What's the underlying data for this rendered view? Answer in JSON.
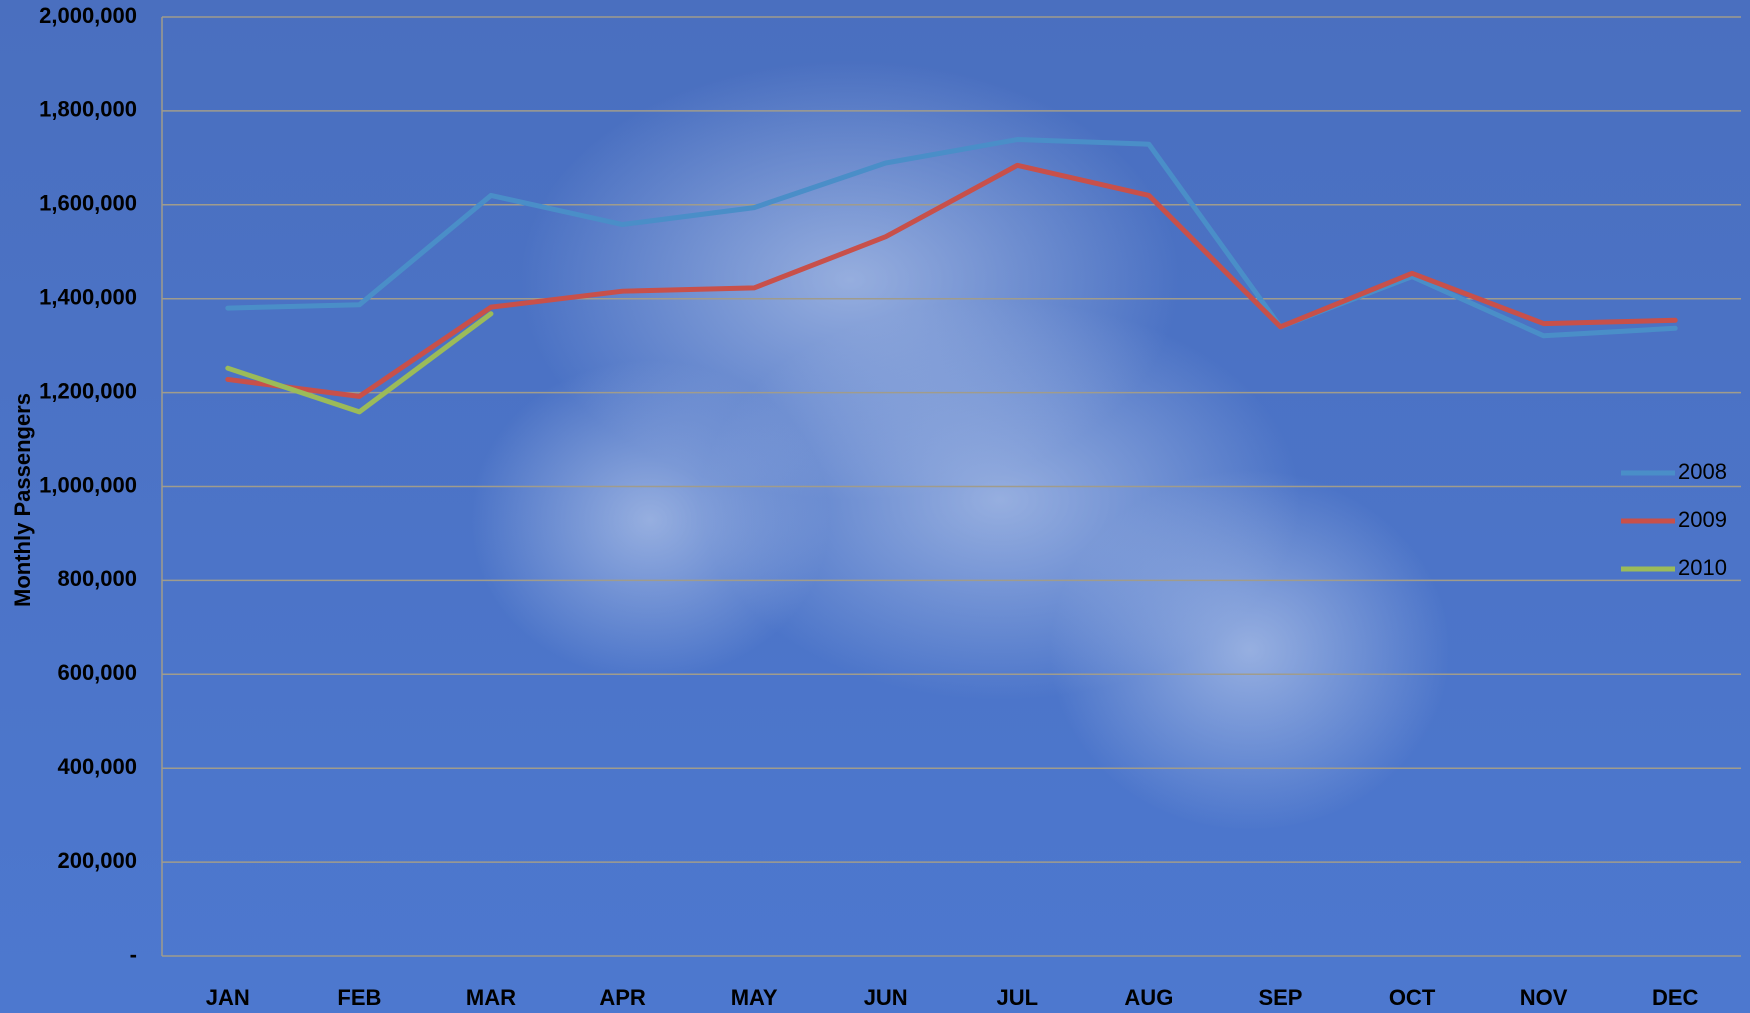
{
  "chart_data": {
    "type": "line",
    "y_label": "Monthly Passengers",
    "categories": [
      "JAN",
      "FEB",
      "MAR",
      "APR",
      "MAY",
      "JUN",
      "JUL",
      "AUG",
      "SEP",
      "OCT",
      "NOV",
      "DEC"
    ],
    "series": [
      {
        "name": "2008",
        "color": "#4a8ec8",
        "values": [
          1380000,
          1387000,
          1620000,
          1558000,
          1594000,
          1689000,
          1739000,
          1729000,
          1340000,
          1447000,
          1321000,
          1337000
        ]
      },
      {
        "name": "2009",
        "color": "#c8504a",
        "values": [
          1228000,
          1192000,
          1382000,
          1416000,
          1423000,
          1532000,
          1684000,
          1620000,
          1340000,
          1454000,
          1347000,
          1354000
        ]
      },
      {
        "name": "2010",
        "color": "#9bbb59",
        "values": [
          1252000,
          1159000,
          1368000,
          null,
          null,
          null,
          null,
          null,
          null,
          null,
          null,
          null
        ]
      }
    ],
    "ylim": [
      0,
      2000000
    ],
    "yticks": [
      {
        "value": 0,
        "label": "-"
      },
      {
        "value": 200000,
        "label": "200,000"
      },
      {
        "value": 400000,
        "label": "400,000"
      },
      {
        "value": 600000,
        "label": "600,000"
      },
      {
        "value": 800000,
        "label": "800,000"
      },
      {
        "value": 1000000,
        "label": "1,000,000"
      },
      {
        "value": 1200000,
        "label": "1,200,000"
      },
      {
        "value": 1400000,
        "label": "1,400,000"
      },
      {
        "value": 1600000,
        "label": "1,600,000"
      },
      {
        "value": 1800000,
        "label": "1,800,000"
      },
      {
        "value": 2000000,
        "label": "2,000,000"
      }
    ],
    "grid": true,
    "legend": "right"
  }
}
